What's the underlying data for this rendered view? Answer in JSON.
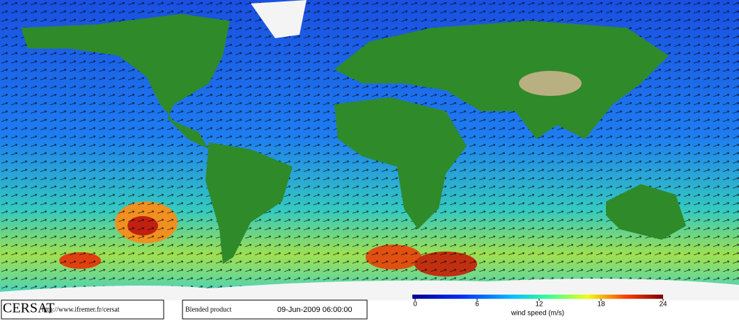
{
  "logo": "CERSAT",
  "url": "http://www.ifremer.fr/cersat",
  "product": "Blended product",
  "date": "09-Jun-2009 06:00:00",
  "colorbar": {
    "label": "wind speed (m/s)",
    "range": [
      0,
      24
    ],
    "ticks": [
      0,
      6,
      12,
      18,
      24
    ]
  }
}
